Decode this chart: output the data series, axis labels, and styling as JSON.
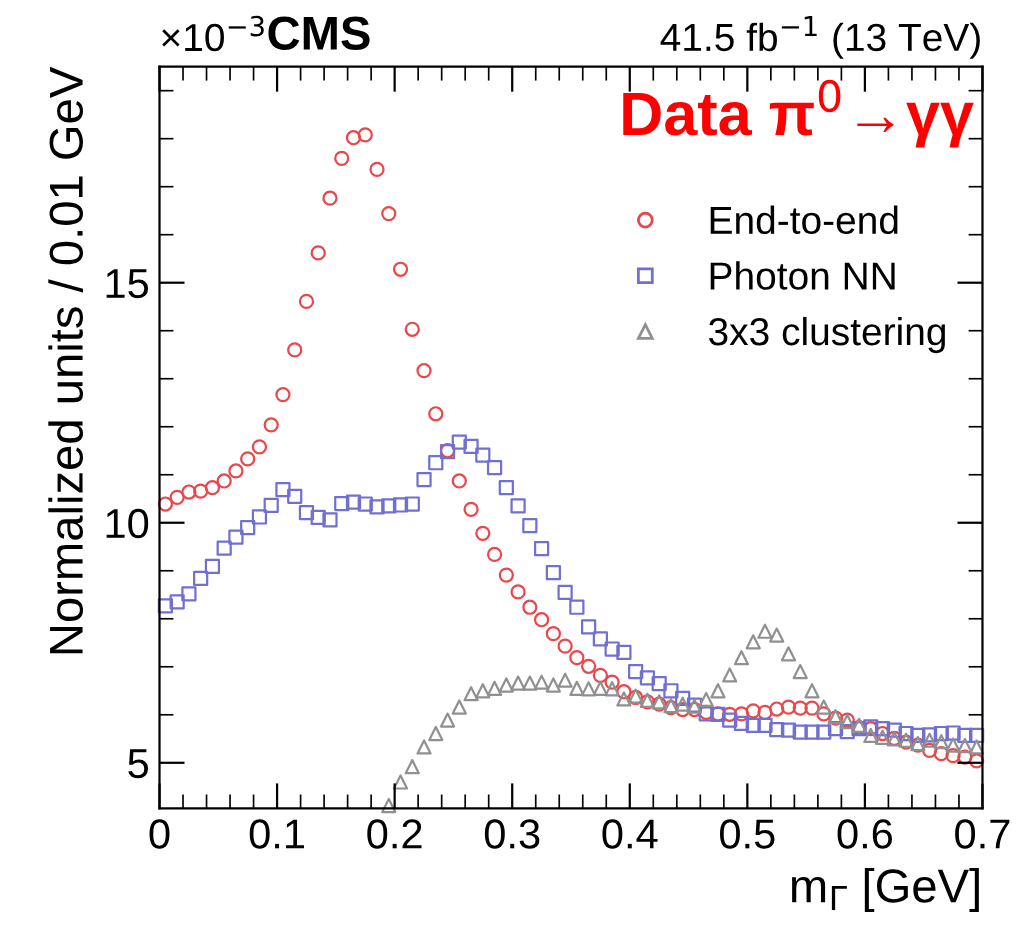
{
  "chart_data": {
    "type": "scatter",
    "xlabel": "m$_{Γ}$ [GeV]",
    "ylabel": "Normalized units / 0.01 GeV",
    "annotations": [
      "×10$^{−3}$",
      "CMS",
      "41.5 fb$^{−1}$ (13 TeV)",
      "Data π$^{0}$→γγ"
    ],
    "x": [
      0.005,
      0.015,
      0.025,
      0.035,
      0.045,
      0.055,
      0.065,
      0.075,
      0.085,
      0.095,
      0.105,
      0.115,
      0.125,
      0.135,
      0.145,
      0.155,
      0.165,
      0.175,
      0.185,
      0.195,
      0.205,
      0.215,
      0.225,
      0.235,
      0.245,
      0.255,
      0.265,
      0.275,
      0.285,
      0.295,
      0.305,
      0.315,
      0.325,
      0.335,
      0.345,
      0.355,
      0.365,
      0.375,
      0.385,
      0.395,
      0.405,
      0.415,
      0.425,
      0.435,
      0.445,
      0.455,
      0.465,
      0.475,
      0.485,
      0.495,
      0.505,
      0.515,
      0.525,
      0.535,
      0.545,
      0.555,
      0.565,
      0.575,
      0.585,
      0.595,
      0.605,
      0.615,
      0.625,
      0.635,
      0.645,
      0.655,
      0.665,
      0.675,
      0.685,
      0.695
    ],
    "series": [
      {
        "name": "End-to-end",
        "color": "#e8474b",
        "marker": "circle",
        "values": [
          10.39,
          10.53,
          10.64,
          10.66,
          10.73,
          10.87,
          11.08,
          11.33,
          11.58,
          12.04,
          12.67,
          13.6,
          14.61,
          15.62,
          16.76,
          17.59,
          18.02,
          18.08,
          17.36,
          16.44,
          15.28,
          14.03,
          13.17,
          12.27,
          11.5,
          10.87,
          10.28,
          9.78,
          9.34,
          8.91,
          8.56,
          8.24,
          7.98,
          7.69,
          7.43,
          7.19,
          7.01,
          6.82,
          6.68,
          6.48,
          6.36,
          6.27,
          6.22,
          6.15,
          6.11,
          6.11,
          6.05,
          6.02,
          6.01,
          6.02,
          6.08,
          6.05,
          6.12,
          6.16,
          6.14,
          6.14,
          6.02,
          5.93,
          5.89,
          5.73,
          5.71,
          5.61,
          5.51,
          5.43,
          5.37,
          5.26,
          5.19,
          5.15,
          5.12,
          5.04
        ]
      },
      {
        "name": "Photon NN",
        "color": "#7070d0",
        "marker": "square",
        "values": [
          8.27,
          8.35,
          8.52,
          8.84,
          9.09,
          9.47,
          9.7,
          9.9,
          10.12,
          10.36,
          10.69,
          10.55,
          10.21,
          10.11,
          10.06,
          10.4,
          10.43,
          10.39,
          10.33,
          10.35,
          10.37,
          10.39,
          10.9,
          11.25,
          11.48,
          11.68,
          11.59,
          11.41,
          11.15,
          10.73,
          10.35,
          9.94,
          9.46,
          8.96,
          8.55,
          8.24,
          7.83,
          7.58,
          7.37,
          7.3,
          6.9,
          6.77,
          6.65,
          6.5,
          6.34,
          6.2,
          6.02,
          6.01,
          5.89,
          5.82,
          5.78,
          5.78,
          5.69,
          5.68,
          5.64,
          5.64,
          5.64,
          5.71,
          5.65,
          5.71,
          5.75,
          5.71,
          5.68,
          5.61,
          5.57,
          5.58,
          5.61,
          5.62,
          5.57,
          5.57
        ]
      },
      {
        "name": "3x3 clustering",
        "color": "#909090",
        "marker": "triangle",
        "x": [
          0.195,
          0.205,
          0.215,
          0.225,
          0.235,
          0.245,
          0.255,
          0.265,
          0.275,
          0.285,
          0.295,
          0.305,
          0.315,
          0.325,
          0.335,
          0.345,
          0.355,
          0.365,
          0.375,
          0.385,
          0.395,
          0.405,
          0.415,
          0.425,
          0.435,
          0.445,
          0.455,
          0.465,
          0.475,
          0.485,
          0.495,
          0.505,
          0.515,
          0.525,
          0.535,
          0.545,
          0.555,
          0.565,
          0.575,
          0.585,
          0.595,
          0.605,
          0.615,
          0.625,
          0.635,
          0.645,
          0.655,
          0.665,
          0.675,
          0.685,
          0.695
        ],
        "values": [
          4.11,
          4.6,
          4.92,
          5.33,
          5.61,
          5.89,
          6.16,
          6.44,
          6.5,
          6.55,
          6.62,
          6.66,
          6.66,
          6.68,
          6.62,
          6.72,
          6.55,
          6.54,
          6.55,
          6.54,
          6.33,
          6.39,
          6.3,
          6.27,
          6.19,
          6.22,
          6.18,
          6.32,
          6.5,
          6.83,
          7.19,
          7.52,
          7.74,
          7.66,
          7.27,
          6.9,
          6.5,
          6.16,
          5.96,
          5.86,
          5.78,
          5.57,
          5.53,
          5.5,
          5.47,
          5.4,
          5.47,
          5.44,
          5.37,
          5.36,
          5.33
        ]
      }
    ],
    "xlim": [
      0,
      0.7
    ],
    "xticks": [
      0,
      0.1,
      0.2,
      0.3,
      0.4,
      0.5,
      0.6,
      0.7
    ],
    "ylim": [
      4.05,
      19.5
    ],
    "yticks": [
      5,
      10,
      15
    ],
    "grid": false,
    "legend": "top right"
  }
}
